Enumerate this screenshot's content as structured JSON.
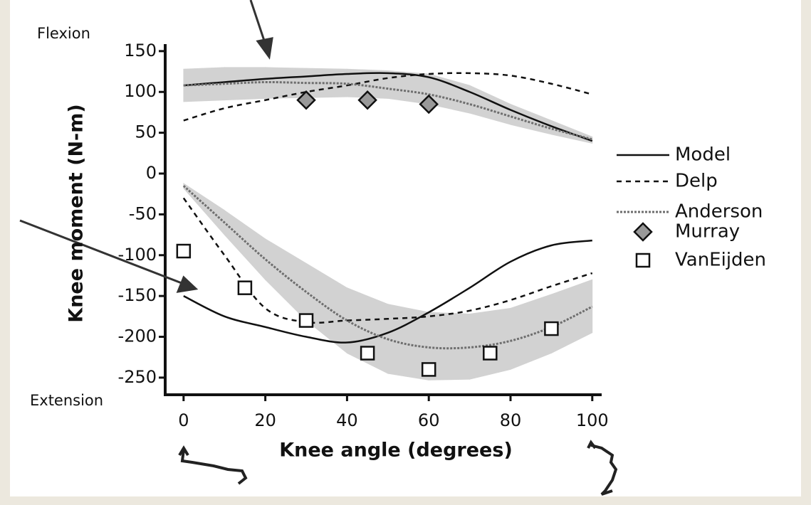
{
  "chart_data": {
    "type": "line",
    "xlabel": "Knee angle (degrees)",
    "ylabel": "Knee moment (N-m)",
    "annotations": [
      "Flexion",
      "Extension"
    ],
    "xlim": [
      -4.5,
      102.3
    ],
    "ylim": [
      -271,
      158.6
    ],
    "xticks": [
      0,
      20,
      40,
      60,
      80,
      100
    ],
    "yticks": [
      150,
      100,
      50,
      0,
      -50,
      -100,
      -150,
      -200,
      -250
    ],
    "x": [
      0,
      10,
      20,
      30,
      40,
      50,
      60,
      70,
      80,
      90,
      100,
      null,
      0,
      10,
      20,
      30,
      40,
      50,
      60,
      70,
      80,
      90,
      100
    ],
    "band": {
      "color": "#d2d2d2",
      "upper": [
        128,
        130,
        130,
        129,
        128,
        126,
        122,
        108,
        85,
        65,
        45,
        null,
        -12,
        -45,
        -80,
        -110,
        -140,
        -160,
        -170,
        -172,
        -165,
        -148,
        -130
      ],
      "lower": [
        88,
        90,
        92,
        93,
        94,
        92,
        85,
        74,
        60,
        48,
        37,
        null,
        -18,
        -75,
        -130,
        -180,
        -220,
        -245,
        -253,
        -252,
        -240,
        -220,
        -195
      ]
    },
    "series": [
      {
        "name": "Model",
        "type": "line",
        "style": "solid",
        "color": "#111111",
        "values": [
          108,
          112,
          116,
          119,
          122,
          123,
          118,
          100,
          78,
          58,
          40,
          null,
          -150,
          -175,
          -188,
          -200,
          -207,
          -195,
          -170,
          -140,
          -108,
          -88,
          -82
        ]
      },
      {
        "name": "Delp",
        "type": "line",
        "style": "dashed",
        "color": "#111111",
        "values": [
          65,
          80,
          90,
          100,
          108,
          117,
          122,
          123,
          120,
          110,
          97,
          null,
          -30,
          -100,
          -165,
          -182,
          -180,
          -178,
          -175,
          -168,
          -155,
          -138,
          -122
        ]
      },
      {
        "name": "Anderson",
        "type": "line",
        "style": "dotted",
        "color": "#6e6e6e",
        "values": [
          108,
          110,
          112,
          111,
          110,
          104,
          97,
          85,
          70,
          55,
          42,
          null,
          -15,
          -60,
          -105,
          -145,
          -180,
          -203,
          -213,
          -213,
          -205,
          -188,
          -163
        ]
      },
      {
        "name": "Murray",
        "type": "scatter",
        "marker": "diamond",
        "color": "#999999",
        "x": [
          30,
          45,
          60
        ],
        "values": [
          90,
          90,
          85
        ]
      },
      {
        "name": "VanEijden",
        "type": "scatter",
        "marker": "square",
        "color": "#ffffff",
        "x": [
          0,
          15,
          30,
          45,
          60,
          75,
          90
        ],
        "values": [
          -95,
          -140,
          -180,
          -220,
          -240,
          -220,
          -190
        ]
      }
    ]
  }
}
